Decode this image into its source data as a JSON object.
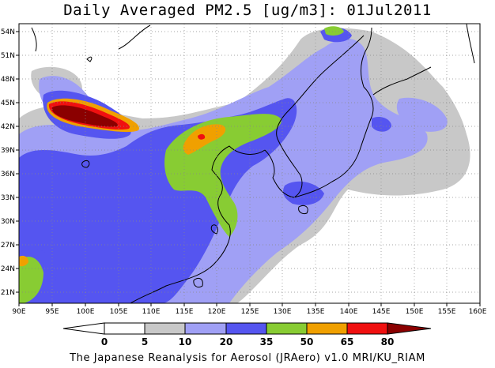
{
  "title": "Daily Averaged PM2.5 [ug/m3]: 01Jul2011",
  "footer": "The Japanese Reanalysis for Aerosol (JRAero) v1.0 MRI/KU_RIAM",
  "map": {
    "lon_ticks": [
      "90E",
      "95E",
      "100E",
      "105E",
      "110E",
      "115E",
      "120E",
      "125E",
      "130E",
      "135E",
      "140E",
      "145E",
      "150E",
      "155E",
      "160E"
    ],
    "lat_ticks": [
      "54N",
      "51N",
      "48N",
      "45N",
      "42N",
      "39N",
      "36N",
      "33N",
      "30N",
      "27N",
      "24N",
      "21N"
    ],
    "lon_range": [
      90,
      160
    ],
    "lat_range": [
      19.5,
      55
    ],
    "grid": true
  },
  "colorbar": {
    "labels": [
      "0",
      "5",
      "10",
      "20",
      "35",
      "50",
      "65",
      "80"
    ],
    "levels": [
      {
        "range": "<0",
        "color": "#ffffff"
      },
      {
        "range": "0-5",
        "color": "#ffffff"
      },
      {
        "range": "5-10",
        "color": "#c8c8c8"
      },
      {
        "range": "10-20",
        "color": "#a0a0f5"
      },
      {
        "range": "20-35",
        "color": "#5555f0"
      },
      {
        "range": "35-50",
        "color": "#88cc33"
      },
      {
        "range": "50-65",
        "color": "#f0a000"
      },
      {
        "range": "65-80",
        "color": "#f01010"
      },
      {
        "range": ">80",
        "color": "#8b0000"
      }
    ]
  }
}
